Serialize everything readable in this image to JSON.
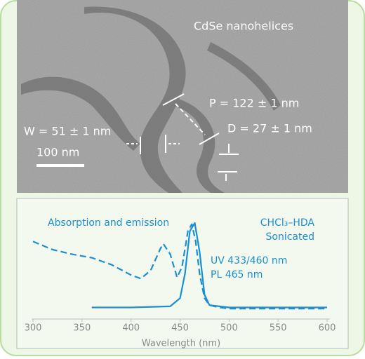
{
  "image": {
    "title": "CdSe nanohelices",
    "pitch": "P = 122 ± 1 nm",
    "width": "W = 51 ± 1 nm",
    "diameter": "D = 27 ± 1 nm",
    "scale_bar": "100 nm"
  },
  "chart_data": {
    "type": "line",
    "xlabel": "Wavelength (nm)",
    "annotations": [
      "Absorption and emission",
      "CHCl₃–HDA",
      "Sonicated",
      "UV 433/460 nm",
      "PL 465 nm"
    ],
    "xlim": [
      300,
      600
    ],
    "xticks": [
      300,
      350,
      400,
      450,
      500,
      550,
      600
    ],
    "ylim": [
      0,
      1
    ],
    "series": [
      {
        "color": "#1a8fd6",
        "style": "dashed",
        "x": [
          300,
          320,
          340,
          360,
          380,
          400,
          410,
          420,
          430,
          433,
          440,
          447,
          452,
          458,
          462,
          466,
          470,
          475,
          480,
          490,
          500,
          550,
          600
        ],
        "values": [
          0.67,
          0.6,
          0.56,
          0.53,
          0.47,
          0.38,
          0.35,
          0.42,
          0.61,
          0.65,
          0.56,
          0.36,
          0.45,
          0.76,
          0.82,
          0.67,
          0.39,
          0.18,
          0.12,
          0.1,
          0.09,
          0.09,
          0.09
        ]
      },
      {
        "color": "#1a8fd6",
        "style": "solid",
        "x": [
          360,
          400,
          440,
          450,
          455,
          460,
          465,
          470,
          475,
          480,
          500,
          550,
          600
        ],
        "values": [
          0.1,
          0.1,
          0.11,
          0.18,
          0.39,
          0.76,
          0.83,
          0.58,
          0.21,
          0.12,
          0.1,
          0.1,
          0.1
        ]
      }
    ]
  }
}
